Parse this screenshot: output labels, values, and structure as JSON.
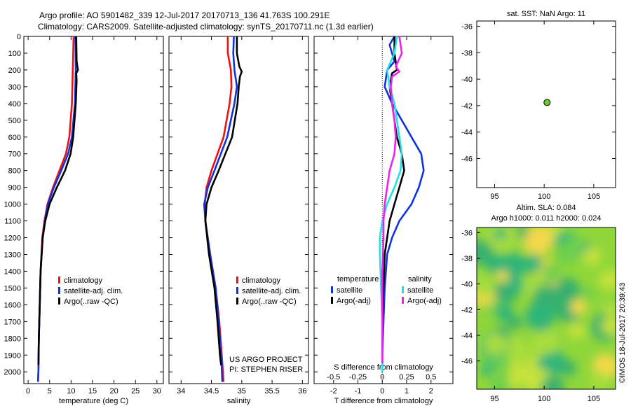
{
  "header": {
    "line1": "Argo profile: AO 5901482_339 12-Jul-2017 20170713_136 41.763S 100.291E",
    "line2": "Climatology: CARS2009. Satellite-adjusted climatology: synTS_20170711.nc (1.3d earlier)"
  },
  "colors": {
    "climatology": "#ee1111",
    "satellite": "#1133dd",
    "argo": "#000000",
    "sat_cyan": "#22e0e8",
    "argo_magenta": "#ee22ee",
    "float_marker": "#66cc22"
  },
  "chart_data": [
    {
      "id": "temperature",
      "type": "line",
      "xlabel": "temperature (deg C)",
      "ylabel": "",
      "xlim": [
        -1,
        31.5
      ],
      "ylim": [
        2070,
        0
      ],
      "xticks": [
        0,
        5,
        10,
        15,
        20,
        25,
        30
      ],
      "yticks": [
        0,
        100,
        200,
        300,
        400,
        500,
        600,
        700,
        800,
        900,
        1000,
        1100,
        1200,
        1300,
        1400,
        1500,
        1600,
        1700,
        1800,
        1900,
        2000
      ],
      "legend": {
        "position": "lower-middle",
        "entries": [
          "climatology",
          "satellite-adj. clim.",
          "Argo(..raw -QC)"
        ]
      },
      "series": [
        {
          "name": "climatology",
          "color": "#ee1111",
          "depth": [
            0,
            200,
            400,
            600,
            700,
            800,
            900,
            1000,
            1100,
            1200,
            1400,
            1600,
            1800,
            2000,
            2060
          ],
          "values": [
            10.6,
            10.4,
            10.2,
            9.6,
            8.8,
            7.3,
            5.8,
            4.5,
            3.8,
            3.3,
            2.9,
            2.7,
            2.5,
            2.4,
            2.3
          ]
        },
        {
          "name": "satellite-adj. clim.",
          "color": "#1133dd",
          "depth": [
            0,
            200,
            400,
            600,
            700,
            800,
            900,
            1000,
            1100,
            1200,
            1400,
            1600,
            1800,
            2000,
            2060
          ],
          "values": [
            11.0,
            11.1,
            10.9,
            10.2,
            9.3,
            7.7,
            6.0,
            4.6,
            3.9,
            3.4,
            2.9,
            2.7,
            2.5,
            2.4,
            2.3
          ]
        },
        {
          "name": "Argo(..raw -QC)",
          "color": "#000000",
          "depth": [
            0,
            150,
            200,
            220,
            260,
            400,
            600,
            700,
            800,
            900,
            1000,
            1100,
            1200,
            1400,
            1600,
            1800,
            1960
          ],
          "values": [
            11.2,
            11.3,
            11.6,
            11.2,
            11.3,
            11.1,
            10.5,
            9.9,
            8.6,
            6.7,
            5.0,
            4.0,
            3.4,
            2.9,
            2.7,
            2.5,
            2.4
          ]
        }
      ],
      "annotations": []
    },
    {
      "id": "salinity",
      "type": "line",
      "xlabel": "salinity",
      "ylabel": "",
      "xlim": [
        33.8,
        36.1
      ],
      "ylim": [
        2070,
        0
      ],
      "xticks": [
        34,
        34.5,
        35,
        35.5,
        36
      ],
      "xtick_labels": [
        "34",
        "34.5",
        "35",
        "35.5",
        "36"
      ],
      "legend": {
        "position": "lower-right",
        "entries": [
          "climatology",
          "satellite-adj. clim.",
          "Argo(..raw -QC)"
        ]
      },
      "series": [
        {
          "name": "climatology",
          "color": "#ee1111",
          "depth": [
            0,
            100,
            200,
            300,
            400,
            600,
            800,
            900,
            1000,
            1100,
            1300,
            1500,
            1700,
            1900,
            2060
          ],
          "values": [
            34.77,
            34.77,
            34.82,
            34.83,
            34.8,
            34.7,
            34.5,
            34.42,
            34.39,
            34.4,
            34.48,
            34.57,
            34.63,
            34.67,
            34.7
          ]
        },
        {
          "name": "satellite-adj. clim.",
          "color": "#1133dd",
          "depth": [
            0,
            100,
            200,
            300,
            400,
            600,
            800,
            900,
            1000,
            1100,
            1300,
            1500,
            1700,
            1900,
            2060
          ],
          "values": [
            34.87,
            34.86,
            34.88,
            34.92,
            34.88,
            34.76,
            34.55,
            34.44,
            34.38,
            34.4,
            34.48,
            34.57,
            34.62,
            34.66,
            34.68
          ]
        },
        {
          "name": "Argo(..raw -QC)",
          "color": "#000000",
          "depth": [
            0,
            100,
            180,
            210,
            240,
            300,
            400,
            600,
            800,
            900,
            1000,
            1100,
            1300,
            1500,
            1700,
            1900,
            1960
          ],
          "values": [
            34.92,
            34.92,
            34.96,
            35.0,
            34.97,
            34.95,
            34.93,
            34.84,
            34.62,
            34.5,
            34.42,
            34.4,
            34.46,
            34.55,
            34.6,
            34.64,
            34.66
          ]
        }
      ],
      "annotations": [
        "US ARGO PROJECT",
        "PI: STEPHEN RISER"
      ]
    },
    {
      "id": "difference",
      "type": "line",
      "xlabel": "T difference from climatology",
      "xlabel_top": "S difference from climatology",
      "xlim": [
        -2.8,
        2.9
      ],
      "ylim": [
        2070,
        0
      ],
      "xticks": [
        -2,
        -1,
        0,
        1,
        2
      ],
      "xtick_labels": [
        "-2",
        "-1",
        "0",
        "1",
        "2"
      ],
      "top_tick_labels": [
        "-0.5",
        "-0.25",
        "0",
        "0.25",
        "0.5"
      ],
      "top_tick_positions": [
        -2,
        -1,
        0,
        1,
        2
      ],
      "legend": {
        "position": "lower-middle",
        "temperature_header": "temperature",
        "salinity_header": "salinity",
        "entries": [
          "satellite",
          "Argo(-adj)",
          "satellite",
          "Argo(-adj)"
        ]
      },
      "series": [
        {
          "name": "temperature satellite",
          "color": "#1133dd",
          "depth": [
            0,
            50,
            100,
            150,
            200,
            300,
            400,
            500,
            600,
            700,
            800,
            900,
            1000,
            1100,
            1200,
            1300,
            1500,
            1700,
            1900,
            2000
          ],
          "values": [
            0.5,
            0.3,
            0.4,
            0.5,
            0.2,
            0.1,
            0.4,
            0.8,
            1.2,
            1.6,
            1.7,
            1.5,
            1.2,
            0.7,
            0.4,
            0.2,
            0.1,
            0.05,
            0.0,
            0.0
          ]
        },
        {
          "name": "temperature Argo(-adj)",
          "color": "#000000",
          "depth": [
            0,
            100,
            200,
            220,
            300,
            400,
            500,
            600,
            700,
            800,
            900,
            1000,
            1100,
            1200,
            1300,
            1500,
            1700,
            1900,
            1960
          ],
          "values": [
            0.5,
            0.5,
            0.6,
            0.4,
            0.3,
            0.4,
            0.5,
            0.6,
            0.8,
            0.9,
            0.7,
            0.5,
            0.3,
            0.2,
            0.1,
            0.05,
            0.0,
            0.0,
            0.0
          ]
        },
        {
          "name": "salinity satellite",
          "color": "#22e0e8",
          "depth": [
            0,
            100,
            200,
            300,
            400,
            500,
            600,
            700,
            800,
            900,
            1000,
            1100,
            1200,
            1300,
            1500,
            1700,
            1900,
            2000
          ],
          "values": [
            0.6,
            0.5,
            0.2,
            0.3,
            0.5,
            0.6,
            0.7,
            0.8,
            0.75,
            0.5,
            0.2,
            0.0,
            -0.1,
            -0.1,
            -0.05,
            0.0,
            0.0,
            0.0
          ]
        },
        {
          "name": "salinity Argo(-adj)",
          "color": "#ee22ee",
          "depth": [
            0,
            100,
            180,
            210,
            240,
            300,
            400,
            500,
            600,
            700,
            800,
            900,
            1000,
            1100,
            1200,
            1400,
            1600,
            1800,
            1950
          ],
          "values": [
            0.7,
            0.8,
            0.55,
            0.7,
            0.4,
            0.35,
            0.4,
            0.5,
            0.55,
            0.5,
            0.3,
            0.2,
            0.1,
            0.05,
            0.05,
            0.0,
            0.0,
            0.0,
            0.0
          ]
        }
      ],
      "annotations": []
    },
    {
      "id": "location",
      "type": "scatter",
      "title": "sat. SST: NaN Argo: 11",
      "xlim": [
        93.2,
        107.2
      ],
      "ylim": [
        -48.2,
        -35.6
      ],
      "xticks": [
        95,
        100,
        105
      ],
      "yticks": [
        -36,
        -38,
        -40,
        -42,
        -44,
        -46
      ],
      "points": [
        {
          "x": 100.291,
          "y": -41.763
        }
      ]
    },
    {
      "id": "sla_map",
      "type": "heatmap",
      "title_line1": "Altim. SLA: 0.084",
      "title_line2": "Argo h1000: 0.011 h2000: 0.024",
      "xlim": [
        93.2,
        107.2
      ],
      "ylim": [
        -48.2,
        -35.6
      ],
      "xticks": [
        95,
        100,
        105
      ],
      "yticks": [
        -36,
        -38,
        -40,
        -42,
        -44,
        -46
      ]
    }
  ],
  "credit": "©IMOS 18-Jul-2017 20:39:43"
}
